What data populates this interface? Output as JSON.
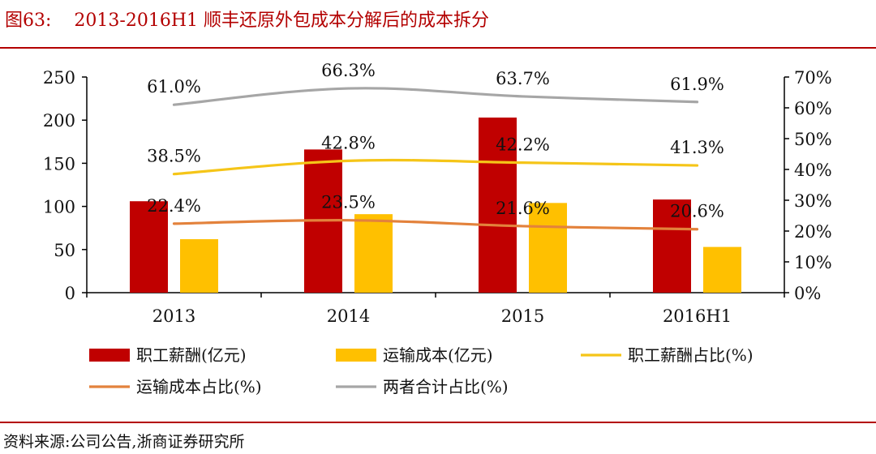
{
  "figure": {
    "label": "图63:",
    "title": "2013-2016H1 顺丰还原外包成本分解后的成本拆分",
    "source": "资料来源:公司公告,浙商证券研究所"
  },
  "colors": {
    "staff_bar": "#C00000",
    "transport_bar": "#FFC000",
    "staff_pct_line": "#F5C518",
    "transport_pct_line": "#E3823C",
    "total_pct_line": "#A6A6A6",
    "title": "#B30000"
  },
  "chart_data": {
    "type": "bar",
    "categories": [
      "2013",
      "2014",
      "2015",
      "2016H1"
    ],
    "series": [
      {
        "name": "职工薪酬(亿元)",
        "kind": "bar",
        "axis": "left",
        "values": [
          106,
          166,
          203,
          108
        ]
      },
      {
        "name": "运输成本(亿元)",
        "kind": "bar",
        "axis": "left",
        "values": [
          62,
          91,
          104,
          53
        ]
      },
      {
        "name": "职工薪酬占比(%)",
        "kind": "line",
        "axis": "right",
        "values": [
          38.5,
          42.8,
          42.2,
          41.3
        ],
        "labels": [
          "38.5%",
          "42.8%",
          "42.2%",
          "41.3%"
        ]
      },
      {
        "name": "运输成本占比(%)",
        "kind": "line",
        "axis": "right",
        "values": [
          22.4,
          23.5,
          21.6,
          20.6
        ],
        "labels": [
          "22.4%",
          "23.5%",
          "21.6%",
          "20.6%"
        ]
      },
      {
        "name": "两者合计占比(%)",
        "kind": "line",
        "axis": "right",
        "values": [
          61.0,
          66.3,
          63.7,
          61.9
        ],
        "labels": [
          "61.0%",
          "66.3%",
          "63.7%",
          "61.9%"
        ]
      }
    ],
    "y_left": {
      "ylim": [
        0,
        250
      ],
      "ticks": [
        "0",
        "50",
        "100",
        "150",
        "200",
        "250"
      ]
    },
    "y_right": {
      "ylim": [
        0,
        70
      ],
      "ticks": [
        "0%",
        "10%",
        "20%",
        "30%",
        "40%",
        "50%",
        "60%",
        "70%"
      ]
    },
    "grid": false,
    "legend": "bottom"
  }
}
